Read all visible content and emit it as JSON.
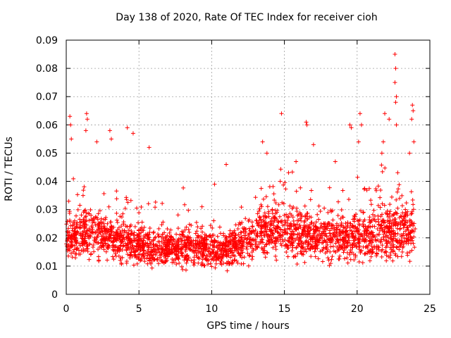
{
  "chart_data": {
    "type": "scatter",
    "title": "Day 138 of 2020, Rate Of TEC Index for receiver cioh",
    "xlabel": "GPS time / hours",
    "ylabel": "ROTI / TECUs",
    "xlim": [
      0,
      25
    ],
    "ylim": [
      0,
      0.09
    ],
    "xticks": [
      "0",
      "5",
      "10",
      "15",
      "20",
      "25"
    ],
    "yticks": [
      "0",
      "0.01",
      "0.02",
      "0.03",
      "0.04",
      "0.05",
      "0.06",
      "0.07",
      "0.08",
      "0.09"
    ],
    "grid": true,
    "marker": "+",
    "color": "#ff0000",
    "series": [
      {
        "name": "ROTI",
        "envelope": {
          "x": [
            0,
            1,
            2,
            3,
            4,
            5,
            6,
            7,
            8,
            9,
            10,
            11,
            12,
            13,
            14,
            15,
            16,
            17,
            18,
            19,
            20,
            21,
            22,
            23,
            24
          ],
          "median": [
            0.02,
            0.021,
            0.021,
            0.02,
            0.019,
            0.018,
            0.016,
            0.016,
            0.017,
            0.017,
            0.016,
            0.016,
            0.018,
            0.021,
            0.023,
            0.022,
            0.021,
            0.021,
            0.02,
            0.02,
            0.021,
            0.021,
            0.022,
            0.022,
            0.021
          ],
          "spread": [
            0.01,
            0.012,
            0.012,
            0.011,
            0.011,
            0.01,
            0.009,
            0.009,
            0.009,
            0.009,
            0.009,
            0.009,
            0.01,
            0.012,
            0.013,
            0.013,
            0.012,
            0.012,
            0.012,
            0.012,
            0.013,
            0.013,
            0.014,
            0.014,
            0.012
          ]
        },
        "peaks": [
          {
            "x": 0.25,
            "y": 0.063
          },
          {
            "x": 0.3,
            "y": 0.06
          },
          {
            "x": 0.35,
            "y": 0.055
          },
          {
            "x": 1.4,
            "y": 0.064
          },
          {
            "x": 1.45,
            "y": 0.062
          },
          {
            "x": 1.35,
            "y": 0.058
          },
          {
            "x": 2.1,
            "y": 0.054
          },
          {
            "x": 3.0,
            "y": 0.058
          },
          {
            "x": 3.1,
            "y": 0.055
          },
          {
            "x": 4.2,
            "y": 0.059
          },
          {
            "x": 4.6,
            "y": 0.057
          },
          {
            "x": 5.7,
            "y": 0.052
          },
          {
            "x": 10.2,
            "y": 0.039
          },
          {
            "x": 11.0,
            "y": 0.046
          },
          {
            "x": 13.5,
            "y": 0.054
          },
          {
            "x": 13.8,
            "y": 0.05
          },
          {
            "x": 14.8,
            "y": 0.064
          },
          {
            "x": 16.5,
            "y": 0.061
          },
          {
            "x": 16.55,
            "y": 0.06
          },
          {
            "x": 17.0,
            "y": 0.053
          },
          {
            "x": 19.5,
            "y": 0.06
          },
          {
            "x": 19.6,
            "y": 0.059
          },
          {
            "x": 20.2,
            "y": 0.064
          },
          {
            "x": 20.3,
            "y": 0.06
          },
          {
            "x": 20.1,
            "y": 0.054
          },
          {
            "x": 21.9,
            "y": 0.064
          },
          {
            "x": 22.2,
            "y": 0.062
          },
          {
            "x": 22.6,
            "y": 0.085
          },
          {
            "x": 22.65,
            "y": 0.08
          },
          {
            "x": 22.6,
            "y": 0.075
          },
          {
            "x": 22.7,
            "y": 0.07
          },
          {
            "x": 22.65,
            "y": 0.068
          },
          {
            "x": 22.7,
            "y": 0.06
          },
          {
            "x": 23.8,
            "y": 0.067
          },
          {
            "x": 23.85,
            "y": 0.065
          },
          {
            "x": 23.75,
            "y": 0.062
          },
          {
            "x": 23.9,
            "y": 0.054
          },
          {
            "x": 21.8,
            "y": 0.054
          },
          {
            "x": 21.7,
            "y": 0.05
          },
          {
            "x": 23.6,
            "y": 0.05
          },
          {
            "x": 15.8,
            "y": 0.047
          },
          {
            "x": 18.5,
            "y": 0.047
          }
        ]
      }
    ]
  }
}
